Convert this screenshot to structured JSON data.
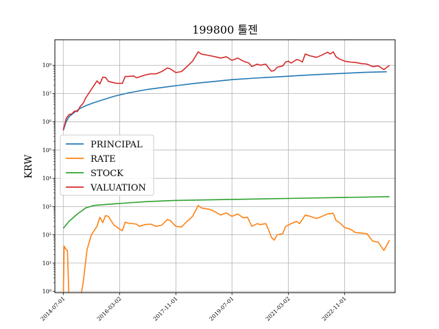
{
  "chart_data": {
    "type": "line",
    "title": "199800 툴젠",
    "xlabel": "",
    "ylabel": "KRW",
    "yscale": "log",
    "ylim": [
      0.9,
      800000000
    ],
    "xlim": [
      "2014-04-01",
      "2024-05-01"
    ],
    "grid": true,
    "legend_position": "center-left",
    "x_ticks": [
      "2014-07-01",
      "2016-03-02",
      "2017-11-01",
      "2019-07-01",
      "2021-03-02",
      "2022-11-01"
    ],
    "y_ticks": [
      {
        "value": 1,
        "label": "10⁰"
      },
      {
        "value": 10,
        "label": "10¹"
      },
      {
        "value": 100,
        "label": "10²"
      },
      {
        "value": 1000,
        "label": "10³"
      },
      {
        "value": 10000,
        "label": "10⁴"
      },
      {
        "value": 100000,
        "label": "10⁵"
      },
      {
        "value": 1000000,
        "label": "10⁶"
      },
      {
        "value": 10000000,
        "label": "10⁷"
      },
      {
        "value": 100000000,
        "label": "10⁸"
      }
    ],
    "series": [
      {
        "name": "PRINCIPAL",
        "color": "#1f77b4",
        "points": [
          [
            "2014-07-01",
            500000
          ],
          [
            "2014-08-01",
            1000000
          ],
          [
            "2014-09-01",
            1500000
          ],
          [
            "2014-11-01",
            2200000
          ],
          [
            "2015-01-01",
            3000000
          ],
          [
            "2015-03-01",
            3700000
          ],
          [
            "2015-06-01",
            4800000
          ],
          [
            "2015-09-01",
            6000000
          ],
          [
            "2016-01-01",
            8000000
          ],
          [
            "2016-06-01",
            10500000
          ],
          [
            "2017-01-01",
            14000000
          ],
          [
            "2017-11-01",
            19000000
          ],
          [
            "2018-06-01",
            23000000
          ],
          [
            "2019-01-01",
            27000000
          ],
          [
            "2019-07-01",
            31000000
          ],
          [
            "2020-03-01",
            35000000
          ],
          [
            "2021-03-02",
            41000000
          ],
          [
            "2022-01-01",
            47000000
          ],
          [
            "2022-11-01",
            52000000
          ],
          [
            "2023-06-01",
            56000000
          ],
          [
            "2024-02-01",
            59000000
          ]
        ]
      },
      {
        "name": "RATE",
        "color": "#ff7f0e",
        "points": [
          [
            "2014-07-01",
            0.5
          ],
          [
            "2014-07-10",
            40
          ],
          [
            "2014-08-01",
            30
          ],
          [
            "2014-08-15",
            28
          ],
          [
            "2014-09-01",
            0.5
          ],
          [
            "2015-01-01",
            0.5
          ],
          [
            "2015-02-01",
            2
          ],
          [
            "2015-03-15",
            30
          ],
          [
            "2015-05-01",
            100
          ],
          [
            "2015-07-01",
            200
          ],
          [
            "2015-08-01",
            420
          ],
          [
            "2015-09-01",
            270
          ],
          [
            "2015-10-01",
            480
          ],
          [
            "2015-11-01",
            450
          ],
          [
            "2016-01-01",
            220
          ],
          [
            "2016-02-01",
            190
          ],
          [
            "2016-03-01",
            160
          ],
          [
            "2016-04-01",
            140
          ],
          [
            "2016-05-01",
            280
          ],
          [
            "2016-06-01",
            260
          ],
          [
            "2016-09-01",
            240
          ],
          [
            "2016-10-01",
            200
          ],
          [
            "2016-12-01",
            230
          ],
          [
            "2017-02-01",
            240
          ],
          [
            "2017-04-01",
            200
          ],
          [
            "2017-06-01",
            220
          ],
          [
            "2017-08-01",
            350
          ],
          [
            "2017-09-01",
            320
          ],
          [
            "2017-11-01",
            200
          ],
          [
            "2018-01-01",
            190
          ],
          [
            "2018-03-01",
            300
          ],
          [
            "2018-05-01",
            450
          ],
          [
            "2018-07-01",
            1100
          ],
          [
            "2018-08-01",
            900
          ],
          [
            "2018-11-01",
            800
          ],
          [
            "2019-01-01",
            650
          ],
          [
            "2019-03-01",
            500
          ],
          [
            "2019-05-01",
            600
          ],
          [
            "2019-07-01",
            450
          ],
          [
            "2019-09-01",
            550
          ],
          [
            "2019-11-01",
            400
          ],
          [
            "2019-12-15",
            420
          ],
          [
            "2020-02-01",
            200
          ],
          [
            "2020-04-01",
            250
          ],
          [
            "2020-05-01",
            230
          ],
          [
            "2020-07-01",
            250
          ],
          [
            "2020-08-01",
            150
          ],
          [
            "2020-09-01",
            80
          ],
          [
            "2020-10-01",
            65
          ],
          [
            "2020-11-01",
            100
          ],
          [
            "2021-01-01",
            110
          ],
          [
            "2021-02-01",
            200
          ],
          [
            "2021-03-02",
            220
          ],
          [
            "2021-04-01",
            250
          ],
          [
            "2021-06-01",
            300
          ],
          [
            "2021-07-01",
            250
          ],
          [
            "2021-09-01",
            500
          ],
          [
            "2021-10-15",
            460
          ],
          [
            "2022-01-01",
            380
          ],
          [
            "2022-03-01",
            450
          ],
          [
            "2022-05-01",
            550
          ],
          [
            "2022-07-01",
            580
          ],
          [
            "2022-08-01",
            320
          ],
          [
            "2022-09-01",
            280
          ],
          [
            "2022-10-01",
            230
          ],
          [
            "2022-11-01",
            180
          ],
          [
            "2023-01-01",
            160
          ],
          [
            "2023-03-01",
            120
          ],
          [
            "2023-05-01",
            115
          ],
          [
            "2023-07-01",
            110
          ],
          [
            "2023-09-01",
            60
          ],
          [
            "2023-11-01",
            55
          ],
          [
            "2024-01-01",
            28
          ],
          [
            "2024-03-01",
            65
          ]
        ]
      },
      {
        "name": "STOCK",
        "color": "#2ca02c",
        "points": [
          [
            "2014-07-01",
            170
          ],
          [
            "2014-09-01",
            300
          ],
          [
            "2014-12-01",
            550
          ],
          [
            "2015-03-01",
            900
          ],
          [
            "2015-06-01",
            1100
          ],
          [
            "2016-01-01",
            1250
          ],
          [
            "2016-06-01",
            1350
          ],
          [
            "2017-01-01",
            1500
          ],
          [
            "2017-11-01",
            1650
          ],
          [
            "2019-07-01",
            1800
          ],
          [
            "2021-03-02",
            1950
          ],
          [
            "2022-11-01",
            2100
          ],
          [
            "2024-03-01",
            2250
          ]
        ]
      },
      {
        "name": "VALUATION",
        "color": "#d62728",
        "points": [
          [
            "2014-07-01",
            500000
          ],
          [
            "2014-08-01",
            1300000
          ],
          [
            "2014-09-01",
            1800000
          ],
          [
            "2014-10-01",
            1900000
          ],
          [
            "2014-11-01",
            2400000
          ],
          [
            "2014-12-01",
            2300000
          ],
          [
            "2015-01-01",
            3500000
          ],
          [
            "2015-02-01",
            4500000
          ],
          [
            "2015-03-01",
            7000000
          ],
          [
            "2015-05-01",
            14000000
          ],
          [
            "2015-07-01",
            28000000
          ],
          [
            "2015-08-01",
            22000000
          ],
          [
            "2015-09-01",
            38000000
          ],
          [
            "2015-10-01",
            37000000
          ],
          [
            "2015-11-01",
            27000000
          ],
          [
            "2016-01-01",
            24000000
          ],
          [
            "2016-02-01",
            23000000
          ],
          [
            "2016-04-01",
            23000000
          ],
          [
            "2016-05-01",
            40000000
          ],
          [
            "2016-06-01",
            40000000
          ],
          [
            "2016-08-01",
            42000000
          ],
          [
            "2016-09-01",
            36000000
          ],
          [
            "2016-12-01",
            45000000
          ],
          [
            "2017-02-01",
            50000000
          ],
          [
            "2017-04-01",
            50000000
          ],
          [
            "2017-06-01",
            60000000
          ],
          [
            "2017-08-01",
            80000000
          ],
          [
            "2017-09-01",
            75000000
          ],
          [
            "2017-11-01",
            55000000
          ],
          [
            "2018-01-01",
            60000000
          ],
          [
            "2018-03-01",
            90000000
          ],
          [
            "2018-05-01",
            140000000
          ],
          [
            "2018-07-01",
            300000000
          ],
          [
            "2018-08-01",
            250000000
          ],
          [
            "2018-11-01",
            220000000
          ],
          [
            "2019-01-01",
            200000000
          ],
          [
            "2019-03-01",
            180000000
          ],
          [
            "2019-05-01",
            200000000
          ],
          [
            "2019-07-01",
            150000000
          ],
          [
            "2019-09-01",
            180000000
          ],
          [
            "2019-11-01",
            140000000
          ],
          [
            "2020-01-01",
            120000000
          ],
          [
            "2020-02-01",
            90000000
          ],
          [
            "2020-04-01",
            110000000
          ],
          [
            "2020-05-01",
            100000000
          ],
          [
            "2020-07-01",
            110000000
          ],
          [
            "2020-08-01",
            80000000
          ],
          [
            "2020-09-01",
            62000000
          ],
          [
            "2020-10-01",
            65000000
          ],
          [
            "2020-11-01",
            85000000
          ],
          [
            "2021-01-01",
            95000000
          ],
          [
            "2021-02-01",
            130000000
          ],
          [
            "2021-03-02",
            140000000
          ],
          [
            "2021-04-01",
            120000000
          ],
          [
            "2021-06-01",
            160000000
          ],
          [
            "2021-07-01",
            150000000
          ],
          [
            "2021-08-01",
            130000000
          ],
          [
            "2021-09-01",
            250000000
          ],
          [
            "2021-10-15",
            220000000
          ],
          [
            "2022-01-01",
            190000000
          ],
          [
            "2022-03-01",
            230000000
          ],
          [
            "2022-05-01",
            290000000
          ],
          [
            "2022-06-01",
            250000000
          ],
          [
            "2022-07-01",
            300000000
          ],
          [
            "2022-08-01",
            200000000
          ],
          [
            "2022-09-01",
            170000000
          ],
          [
            "2022-11-01",
            140000000
          ],
          [
            "2023-01-01",
            130000000
          ],
          [
            "2023-03-01",
            125000000
          ],
          [
            "2023-05-01",
            115000000
          ],
          [
            "2023-07-01",
            110000000
          ],
          [
            "2023-09-01",
            90000000
          ],
          [
            "2023-11-01",
            95000000
          ],
          [
            "2024-01-01",
            70000000
          ],
          [
            "2024-03-01",
            100000000
          ]
        ]
      }
    ]
  }
}
